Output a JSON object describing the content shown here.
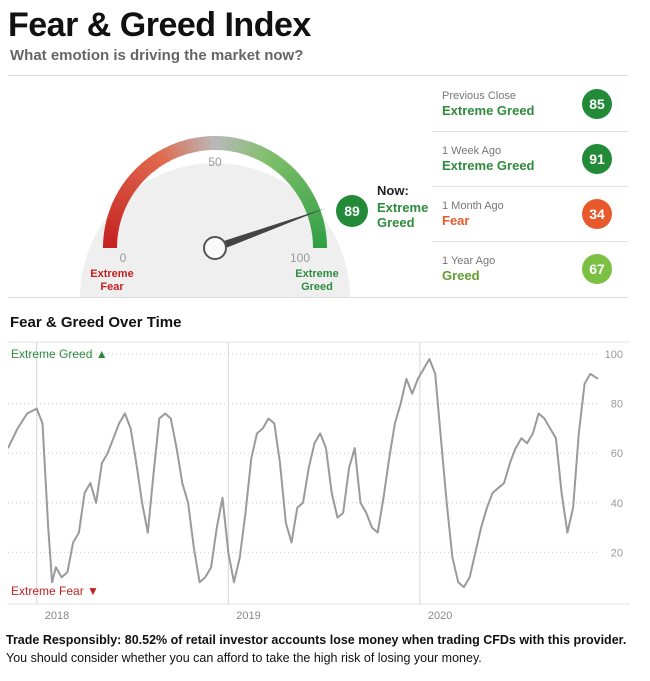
{
  "header": {
    "title": "Fear & Greed Index",
    "subtitle": "What emotion is driving the market now?"
  },
  "gauge": {
    "value": 89,
    "min_label": "0",
    "mid_label": "50",
    "max_label": "100",
    "fear_label_line1": "Extreme",
    "fear_label_line2": "Fear",
    "greed_label_line1": "Extreme",
    "greed_label_line2": "Greed",
    "now_label": "Now:",
    "now_rating_line1": "Extreme",
    "now_rating_line2": "Greed",
    "now_value": "89",
    "colors": {
      "fear": "#c4201f",
      "neutral": "#b9b9b9",
      "greed": "#2f9e44",
      "track": "#efefef"
    }
  },
  "history": [
    {
      "label": "Previous Close",
      "rating": "Extreme Greed",
      "value": "85",
      "color": "#238a38",
      "text_color": "#2e8b3e"
    },
    {
      "label": "1 Week Ago",
      "rating": "Extreme Greed",
      "value": "91",
      "color": "#238a38",
      "text_color": "#2e8b3e"
    },
    {
      "label": "1 Month Ago",
      "rating": "Fear",
      "value": "34",
      "color": "#e8592b",
      "text_color": "#e8592b"
    },
    {
      "label": "1 Year Ago",
      "rating": "Greed",
      "value": "67",
      "color": "#7cc043",
      "text_color": "#5f9e2f"
    }
  ],
  "chart_section": {
    "title": "Fear & Greed Over Time"
  },
  "chart_data": {
    "type": "line",
    "top_label": "Extreme Greed",
    "bottom_label": "Extreme Fear",
    "x_tick_labels": [
      "2018",
      "2019",
      "2020"
    ],
    "x_ticks": [
      2018.0,
      2019.0,
      2020.0
    ],
    "y_ticks": [
      20,
      40,
      60,
      80,
      100
    ],
    "ylim": [
      0,
      100
    ],
    "xlim": [
      2017.85,
      2020.93
    ],
    "grid": true,
    "colors": {
      "line": "#9a9a9a",
      "top_label": "#2e8b3e",
      "bottom_label": "#c4201f"
    },
    "series": [
      {
        "x": [
          2017.85,
          2017.9,
          2017.95,
          2018.0,
          2018.03,
          2018.06,
          2018.08,
          2018.1,
          2018.13,
          2018.16,
          2018.19,
          2018.22,
          2018.25,
          2018.28,
          2018.31,
          2018.34,
          2018.37,
          2018.4,
          2018.43,
          2018.46,
          2018.49,
          2018.52,
          2018.55,
          2018.58,
          2018.61,
          2018.64,
          2018.67,
          2018.7,
          2018.73,
          2018.76,
          2018.79,
          2018.82,
          2018.85,
          2018.88,
          2018.91,
          2018.94,
          2018.97,
          2019.0,
          2019.03,
          2019.06,
          2019.09,
          2019.12,
          2019.15,
          2019.18,
          2019.21,
          2019.24,
          2019.27,
          2019.3,
          2019.33,
          2019.36,
          2019.39,
          2019.42,
          2019.45,
          2019.48,
          2019.51,
          2019.54,
          2019.57,
          2019.6,
          2019.63,
          2019.66,
          2019.69,
          2019.72,
          2019.75,
          2019.78,
          2019.81,
          2019.84,
          2019.87,
          2019.9,
          2019.93,
          2019.96,
          2019.99,
          2020.02,
          2020.05,
          2020.08,
          2020.11,
          2020.14,
          2020.17,
          2020.2,
          2020.23,
          2020.26,
          2020.29,
          2020.32,
          2020.35,
          2020.38,
          2020.41,
          2020.44,
          2020.47,
          2020.5,
          2020.53,
          2020.56,
          2020.59,
          2020.62,
          2020.65,
          2020.68,
          2020.71,
          2020.74,
          2020.77,
          2020.8,
          2020.83,
          2020.86,
          2020.89,
          2020.93
        ],
        "y": [
          62,
          70,
          76,
          78,
          72,
          30,
          8,
          14,
          10,
          12,
          24,
          28,
          44,
          48,
          40,
          56,
          60,
          66,
          72,
          76,
          70,
          56,
          40,
          28,
          52,
          74,
          76,
          74,
          62,
          48,
          40,
          22,
          8,
          10,
          14,
          30,
          42,
          20,
          8,
          18,
          36,
          58,
          68,
          70,
          74,
          72,
          56,
          32,
          24,
          38,
          40,
          54,
          64,
          68,
          62,
          44,
          34,
          36,
          54,
          62,
          40,
          36,
          30,
          28,
          42,
          58,
          72,
          80,
          90,
          84,
          90,
          94,
          98,
          92,
          66,
          40,
          18,
          8,
          6,
          10,
          20,
          30,
          38,
          44,
          46,
          48,
          56,
          62,
          66,
          64,
          68,
          76,
          74,
          70,
          66,
          44,
          28,
          38,
          68,
          88,
          92,
          90
        ]
      }
    ]
  },
  "disclaimer": {
    "lead": "Trade Responsibly: ",
    "bold": "80.52% of retail investor accounts lose money when trading CFDs with this provider.",
    "rest": " You should consider whether you can afford to take the high risk of losing your money."
  }
}
